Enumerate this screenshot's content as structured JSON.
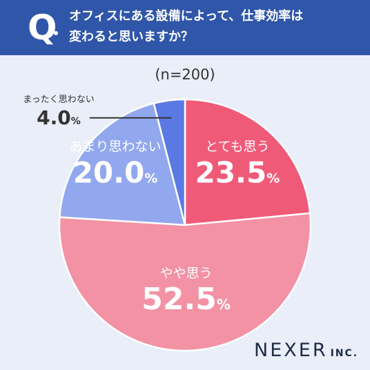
{
  "header": {
    "q_mark": "Q",
    "question_line1": "オフィスにある設備によって、仕事効率は",
    "question_line2": "変わると思いますか？"
  },
  "sample_size": "(n=200)",
  "brand": {
    "name": "NEXER",
    "suffix": "INC."
  },
  "colors": {
    "header_bg": "#2f56a8",
    "background": "#e9eef8",
    "slice_very": "#f05a79",
    "slice_somewhat": "#f392a5",
    "slice_not_much": "#92a8ee",
    "slice_not_at_all": "#5b79e2"
  },
  "chart_data": {
    "type": "pie",
    "title": "",
    "unit": "%",
    "categories": [
      "とても思う",
      "やや思う",
      "あまり思わない",
      "まったく思わない"
    ],
    "values": [
      23.5,
      52.5,
      20.0,
      4.0
    ],
    "value_labels": [
      "23.5",
      "52.5",
      "20.0",
      "4.0"
    ],
    "colors": [
      "#f05a79",
      "#f392a5",
      "#92a8ee",
      "#5b79e2"
    ],
    "start_angle_deg": 0,
    "direction": "clockwise",
    "legend": "none"
  }
}
